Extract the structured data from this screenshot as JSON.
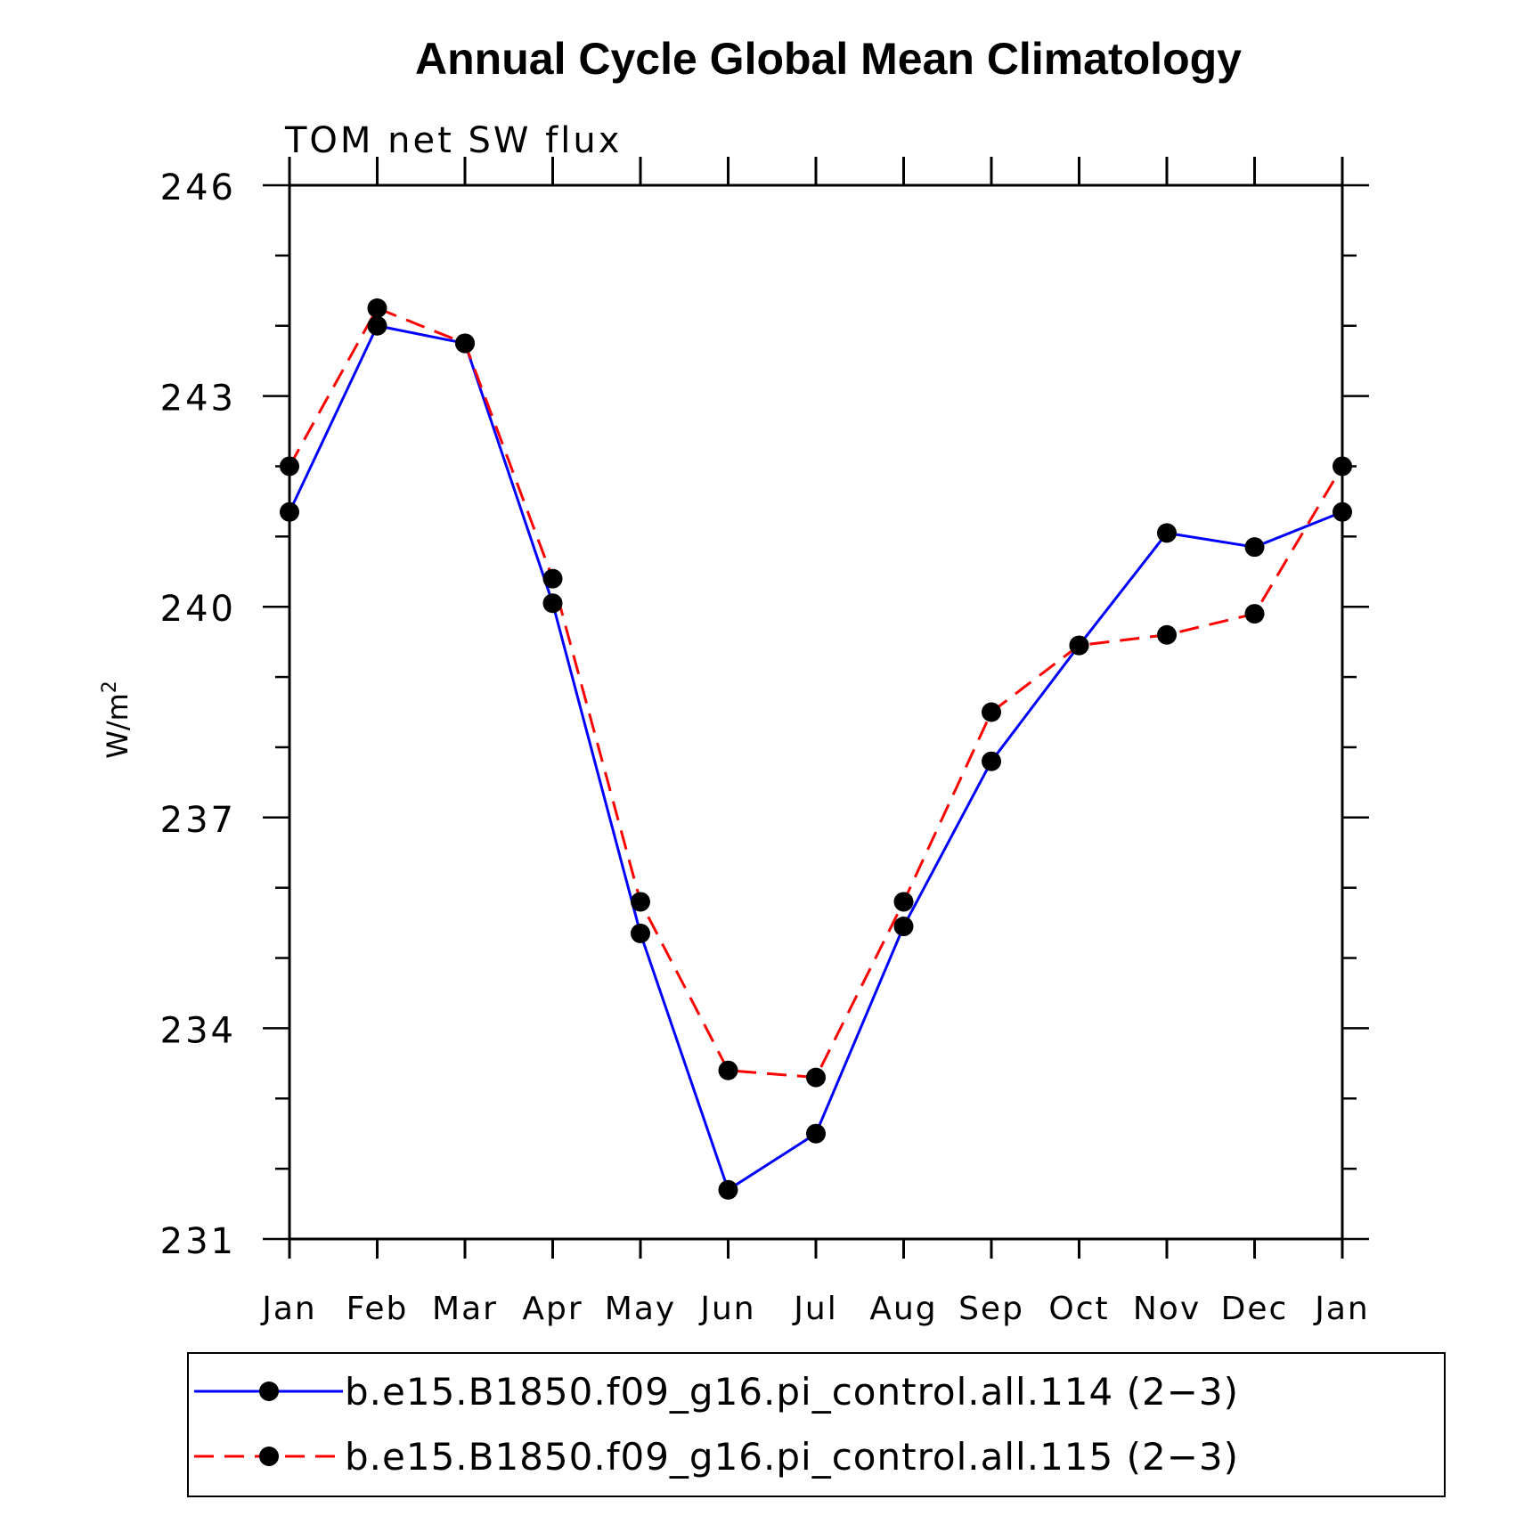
{
  "chart_data": {
    "type": "line",
    "title": "Annual Cycle Global Mean Climatology",
    "subtitle": "TOM net SW flux",
    "ylabel_base": "W/m",
    "ylabel_sup": "2",
    "xlabel": "",
    "ylim": [
      231,
      246
    ],
    "yticks": [
      231,
      234,
      237,
      240,
      243,
      246
    ],
    "categories": [
      "Jan",
      "Feb",
      "Mar",
      "Apr",
      "May",
      "Jun",
      "Jul",
      "Aug",
      "Sep",
      "Oct",
      "Nov",
      "Dec",
      "Jan"
    ],
    "series": [
      {
        "name": "b.e15.B1850.f09_g16.pi_control.all.114 (2−3)",
        "color": "#0000ff",
        "dash": "solid",
        "values": [
          241.35,
          244.0,
          243.75,
          240.05,
          235.35,
          231.7,
          232.5,
          235.45,
          237.8,
          239.45,
          241.05,
          240.85,
          241.35
        ]
      },
      {
        "name": "b.e15.B1850.f09_g16.pi_control.all.115 (2−3)",
        "color": "#ff0000",
        "dash": "dashed",
        "values": [
          242.0,
          244.25,
          243.75,
          240.4,
          235.8,
          233.4,
          233.3,
          235.8,
          238.5,
          239.45,
          239.6,
          239.9,
          242.0
        ]
      }
    ]
  }
}
